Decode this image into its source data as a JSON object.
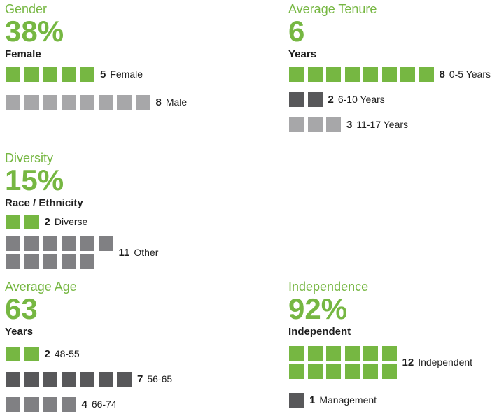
{
  "colors": {
    "green": "#76b742",
    "light_gray": "#a7a7a9",
    "mid_gray": "#808083",
    "dark_gray": "#58585a"
  },
  "chart_data": [
    {
      "type": "table",
      "title": "Gender",
      "headline": "38%",
      "subtitle": "Female",
      "categories": [
        "Female",
        "Male"
      ],
      "values": [
        5,
        8
      ],
      "colors": [
        "#76b742",
        "#a7a7a9"
      ]
    },
    {
      "type": "table",
      "title": "Average Tenure",
      "headline": "6",
      "subtitle": "Years",
      "categories": [
        "0-5 Years",
        "6-10 Years",
        "11-17 Years"
      ],
      "values": [
        8,
        2,
        3
      ],
      "colors": [
        "#76b742",
        "#58585a",
        "#a7a7a9"
      ]
    },
    {
      "type": "table",
      "title": "Diversity",
      "headline": "15%",
      "subtitle": "Race / Ethnicity",
      "categories": [
        "Diverse",
        "Other"
      ],
      "values": [
        2,
        11
      ],
      "colors": [
        "#76b742",
        "#808083"
      ]
    },
    {
      "type": "table",
      "title": "Average Age",
      "headline": "63",
      "subtitle": "Years",
      "categories": [
        "48-55",
        "56-65",
        "66-74"
      ],
      "values": [
        2,
        7,
        4
      ],
      "colors": [
        "#76b742",
        "#58585a",
        "#808083"
      ]
    },
    {
      "type": "table",
      "title": "Independence",
      "headline": "92%",
      "subtitle": "Independent",
      "categories": [
        "Independent",
        "Management"
      ],
      "values": [
        12,
        1
      ],
      "colors": [
        "#76b742",
        "#58585a"
      ]
    }
  ]
}
